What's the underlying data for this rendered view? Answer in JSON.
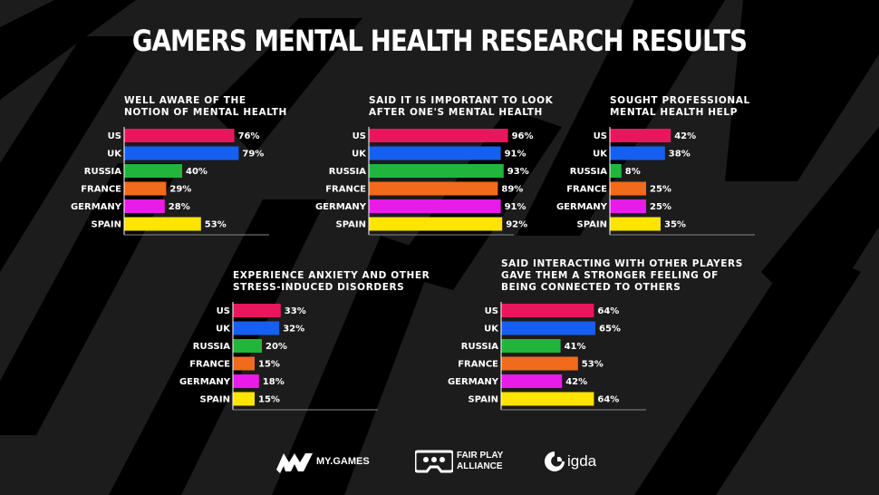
{
  "title": "GAMERS MENTAL HEALTH RESEARCH RESULTS",
  "colors": {
    "US": "#e8175d",
    "UK": "#1560f0",
    "RUSSIA": "#22b53c",
    "FRANCE": "#f26a1b",
    "GERMANY": "#e81be8",
    "SPAIN": "#ffe400"
  },
  "chart_data": [
    {
      "type": "bar",
      "title": "WELL AWARE OF THE\nNOTION OF MENTAL HEALTH",
      "categories": [
        "US",
        "UK",
        "RUSSIA",
        "FRANCE",
        "GERMANY",
        "SPAIN"
      ],
      "values": [
        76,
        79,
        40,
        29,
        28,
        53
      ],
      "labels": [
        "76%",
        "79%",
        "40%",
        "29%",
        "28%",
        "53%"
      ],
      "xlim": [
        0,
        100
      ],
      "unit": "%"
    },
    {
      "type": "bar",
      "title": "SAID IT IS IMPORTANT TO LOOK\nAFTER ONE'S MENTAL HEALTH",
      "categories": [
        "US",
        "UK",
        "RUSSIA",
        "FRANCE",
        "GERMANY",
        "SPAIN"
      ],
      "values": [
        96,
        91,
        93,
        89,
        91,
        92
      ],
      "labels": [
        "96%",
        "91%",
        "93%",
        "89%",
        "91%",
        "92%"
      ],
      "xlim": [
        0,
        100
      ],
      "unit": "%"
    },
    {
      "type": "bar",
      "title": "SOUGHT PROFESSIONAL\nMENTAL HEALTH HELP",
      "categories": [
        "US",
        "UK",
        "RUSSIA",
        "FRANCE",
        "GERMANY",
        "SPAIN"
      ],
      "values": [
        42,
        38,
        8,
        25,
        25,
        35
      ],
      "labels": [
        "42%",
        "38%",
        "8%",
        "25%",
        "25%",
        "35%"
      ],
      "xlim": [
        0,
        100
      ],
      "unit": "%"
    },
    {
      "type": "bar",
      "title": "EXPERIENCE ANXIETY AND OTHER\nSTRESS-INDUCED DISORDERS",
      "categories": [
        "US",
        "UK",
        "RUSSIA",
        "FRANCE",
        "GERMANY",
        "SPAIN"
      ],
      "values": [
        33,
        32,
        20,
        15,
        18,
        15
      ],
      "labels": [
        "33%",
        "32%",
        "20%",
        "15%",
        "18%",
        "15%"
      ],
      "xlim": [
        0,
        100
      ],
      "unit": "%"
    },
    {
      "type": "bar",
      "title": "SAID INTERACTING WITH OTHER PLAYERS\nGAVE THEM A STRONGER FEELING OF\nBEING CONNECTED TO OTHERS",
      "categories": [
        "US",
        "UK",
        "RUSSIA",
        "FRANCE",
        "GERMANY",
        "SPAIN"
      ],
      "values": [
        64,
        65,
        41,
        53,
        42,
        64
      ],
      "labels": [
        "64%",
        "65%",
        "41%",
        "53%",
        "42%",
        "64%"
      ],
      "xlim": [
        0,
        100
      ],
      "unit": "%"
    }
  ],
  "logos": {
    "mygames": "MY.GAMES",
    "fairplay_1": "FAIR PLAY",
    "fairplay_2": "ALLIANCE",
    "igda": "igda"
  }
}
